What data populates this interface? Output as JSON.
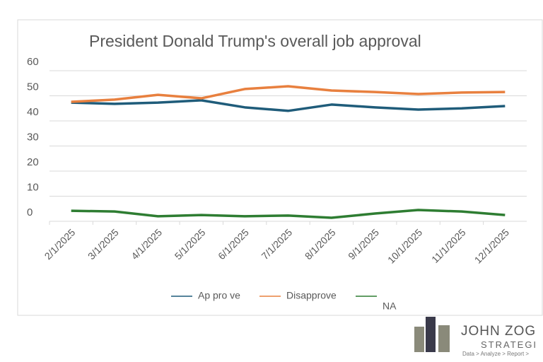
{
  "chart_data": {
    "type": "line",
    "title": "President Donald Trump's overall job approval",
    "categories": [
      "2/1/2025",
      "3/1/2025",
      "4/1/2025",
      "5/1/2025",
      "6/1/2025",
      "7/1/2025",
      "8/1/2025",
      "9/1/2025",
      "10/1/2025",
      "11/1/2025",
      "12/1/2025"
    ],
    "series": [
      {
        "name": "Ap pro ve",
        "color": "#1f5c7a",
        "values": [
          47.3,
          46.8,
          47.3,
          48.2,
          45.4,
          44,
          46.5,
          45.4,
          44.5,
          45,
          45.9
        ]
      },
      {
        "name": "Disapprove",
        "color": "#e8803f",
        "values": [
          47.6,
          48.5,
          50.4,
          49,
          52.7,
          53.8,
          52.1,
          51.5,
          50.7,
          51.3,
          51.5
        ]
      },
      {
        "name": "NA",
        "color": "#2e7d32",
        "values": [
          4.2,
          3.9,
          2,
          2.5,
          2,
          2.3,
          1.4,
          3.1,
          4.5,
          3.9,
          2.5
        ]
      }
    ],
    "ylim": [
      0,
      60
    ],
    "yticks": [
      0,
      10,
      20,
      30,
      40,
      50,
      60
    ],
    "grid": true,
    "legend": "bottom"
  },
  "logo": {
    "name": "JOHN ZOG",
    "subtitle": "STRATEGI",
    "tagline": "Data > Analyze > Report >"
  }
}
